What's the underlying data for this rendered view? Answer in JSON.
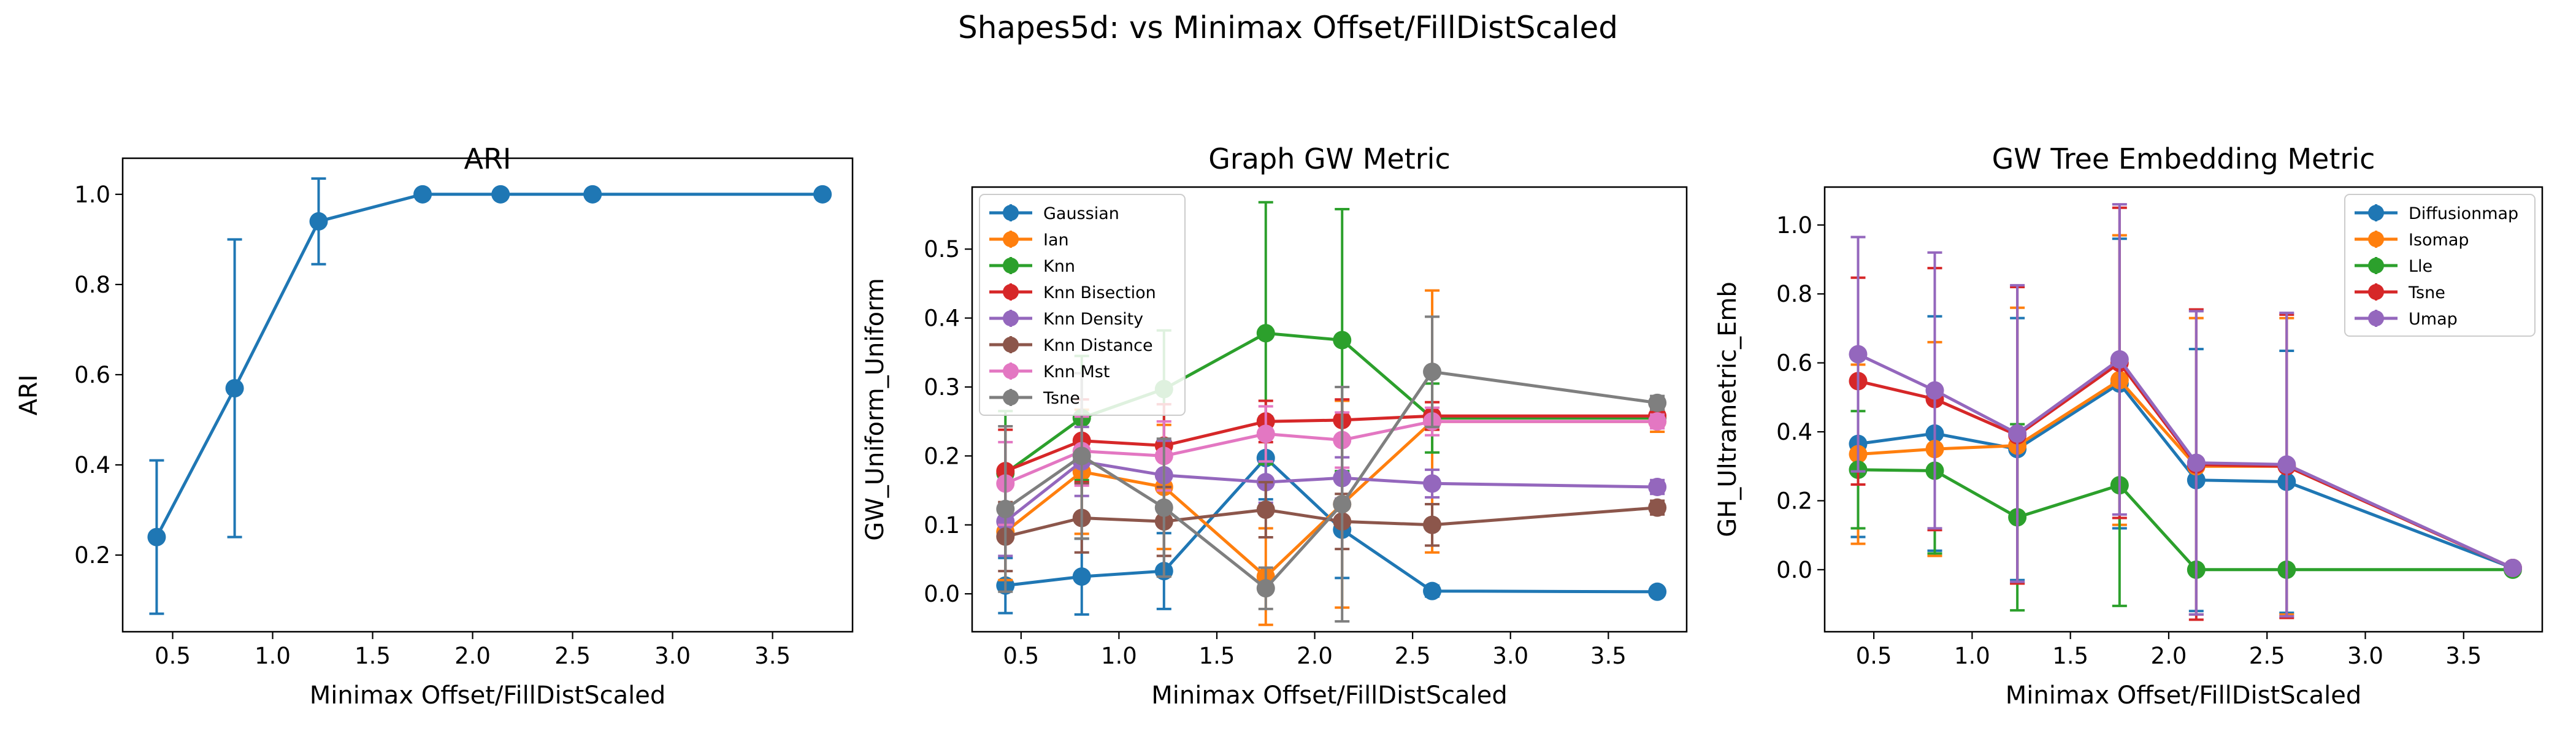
{
  "suptitle": "Shapes5d: vs Minimax Offset/FillDistScaled",
  "colors": {
    "blue": "#1f77b4",
    "orange": "#ff7f0e",
    "green": "#2ca02c",
    "red": "#d62728",
    "purple": "#9467bd",
    "brown": "#8c564b",
    "pink": "#e377c2",
    "gray": "#7f7f7f"
  },
  "chart_data": [
    {
      "type": "line",
      "title": "ARI",
      "xlabel": "Minimax Offset/FillDistScaled",
      "ylabel": "ARI",
      "xlim": [
        0.25,
        3.9
      ],
      "ylim": [
        0.03,
        1.08
      ],
      "xticks": [
        "0.5",
        "1.0",
        "1.5",
        "2.0",
        "2.5",
        "3.0",
        "3.5"
      ],
      "yticks": [
        "0.2",
        "0.4",
        "0.6",
        "0.8",
        "1.0"
      ],
      "x": [
        0.42,
        0.81,
        1.23,
        1.75,
        2.14,
        2.6,
        3.75
      ],
      "legend": "none",
      "series": [
        {
          "name": "",
          "color": "blue",
          "values": [
            0.24,
            0.57,
            0.94,
            1.0,
            1.0,
            1.0,
            1.0
          ],
          "err": [
            0.17,
            0.33,
            0.095,
            0.0,
            0.0,
            0.0,
            0.0
          ]
        }
      ]
    },
    {
      "type": "line",
      "title": "Graph GW Metric",
      "xlabel": "Minimax Offset/FillDistScaled",
      "ylabel": "GW_Uniform_Uniform",
      "xlim": [
        0.25,
        3.9
      ],
      "ylim": [
        -0.055,
        0.59
      ],
      "xticks": [
        "0.5",
        "1.0",
        "1.5",
        "2.0",
        "2.5",
        "3.0",
        "3.5"
      ],
      "yticks": [
        "0.0",
        "0.1",
        "0.2",
        "0.3",
        "0.4",
        "0.5"
      ],
      "x": [
        0.42,
        0.81,
        1.23,
        1.75,
        2.14,
        2.6,
        3.75
      ],
      "legend": "upper-left",
      "series": [
        {
          "name": "Gaussian",
          "color": "blue",
          "values": [
            0.012,
            0.025,
            0.033,
            0.197,
            0.093,
            0.004,
            0.003
          ],
          "err": [
            0.04,
            0.055,
            0.055,
            0.06,
            0.07,
            0.008,
            0.006
          ]
        },
        {
          "name": "Ian",
          "color": "orange",
          "values": [
            0.09,
            0.177,
            0.155,
            0.025,
            0.13,
            0.25,
            0.25
          ],
          "err": [
            0.07,
            0.09,
            0.09,
            0.07,
            0.15,
            0.19,
            0.015
          ]
        },
        {
          "name": "Knn",
          "color": "green",
          "values": [
            0.175,
            0.255,
            0.297,
            0.378,
            0.368,
            0.255,
            0.255
          ],
          "err": [
            0.09,
            0.09,
            0.085,
            0.19,
            0.19,
            0.05,
            0.01
          ]
        },
        {
          "name": "Knn Bisection",
          "color": "red",
          "values": [
            0.178,
            0.222,
            0.215,
            0.25,
            0.252,
            0.258,
            0.258
          ],
          "err": [
            0.06,
            0.06,
            0.06,
            0.03,
            0.03,
            0.02,
            0.01
          ]
        },
        {
          "name": "Knn Density",
          "color": "purple",
          "values": [
            0.105,
            0.192,
            0.172,
            0.162,
            0.168,
            0.16,
            0.155
          ],
          "err": [
            0.05,
            0.05,
            0.05,
            0.03,
            0.03,
            0.02,
            0.01
          ]
        },
        {
          "name": "Knn Distance",
          "color": "brown",
          "values": [
            0.083,
            0.11,
            0.105,
            0.122,
            0.105,
            0.1,
            0.125
          ],
          "err": [
            0.05,
            0.05,
            0.05,
            0.04,
            0.04,
            0.03,
            0.01
          ]
        },
        {
          "name": "Knn Mst",
          "color": "pink",
          "values": [
            0.16,
            0.207,
            0.2,
            0.232,
            0.223,
            0.25,
            0.25
          ],
          "err": [
            0.06,
            0.05,
            0.05,
            0.04,
            0.04,
            0.02,
            0.01
          ]
        },
        {
          "name": "Tsne",
          "color": "gray",
          "values": [
            0.123,
            0.2,
            0.125,
            0.008,
            0.13,
            0.322,
            0.277
          ],
          "err": [
            0.12,
            0.12,
            0.1,
            0.03,
            0.17,
            0.08,
            0.01
          ]
        }
      ]
    },
    {
      "type": "line",
      "title": "GW Tree Embedding Metric",
      "xlabel": "Minimax Offset/FillDistScaled",
      "ylabel": "GH_Ultrametric_Emb",
      "xlim": [
        0.25,
        3.9
      ],
      "ylim": [
        -0.18,
        1.11
      ],
      "xticks": [
        "0.5",
        "1.0",
        "1.5",
        "2.0",
        "2.5",
        "3.0",
        "3.5"
      ],
      "yticks": [
        "0.0",
        "0.2",
        "0.4",
        "0.6",
        "0.8",
        "1.0"
      ],
      "x": [
        0.42,
        0.81,
        1.23,
        1.75,
        2.14,
        2.6,
        3.75
      ],
      "legend": "upper-right",
      "series": [
        {
          "name": "Diffusionmap",
          "color": "blue",
          "values": [
            0.365,
            0.395,
            0.35,
            0.54,
            0.26,
            0.255,
            0.005
          ],
          "err": [
            0.27,
            0.34,
            0.38,
            0.42,
            0.38,
            0.38,
            0.005
          ]
        },
        {
          "name": "Isomap",
          "color": "orange",
          "values": [
            0.335,
            0.35,
            0.36,
            0.55,
            0.3,
            0.3,
            0.005
          ],
          "err": [
            0.26,
            0.31,
            0.4,
            0.42,
            0.43,
            0.43,
            0.005
          ]
        },
        {
          "name": "Lle",
          "color": "green",
          "values": [
            0.29,
            0.287,
            0.152,
            0.245,
            0.0,
            0.0,
            0.0
          ],
          "err": [
            0.17,
            0.24,
            0.27,
            0.35,
            0.0,
            0.0,
            0.0
          ]
        },
        {
          "name": "Tsne",
          "color": "red",
          "values": [
            0.547,
            0.495,
            0.39,
            0.6,
            0.305,
            0.3,
            0.005
          ],
          "err": [
            0.3,
            0.38,
            0.43,
            0.45,
            0.45,
            0.44,
            0.005
          ]
        },
        {
          "name": "Umap",
          "color": "purple",
          "values": [
            0.625,
            0.52,
            0.395,
            0.61,
            0.31,
            0.305,
            0.005
          ],
          "err": [
            0.34,
            0.4,
            0.43,
            0.45,
            0.44,
            0.44,
            0.005
          ]
        }
      ]
    }
  ]
}
